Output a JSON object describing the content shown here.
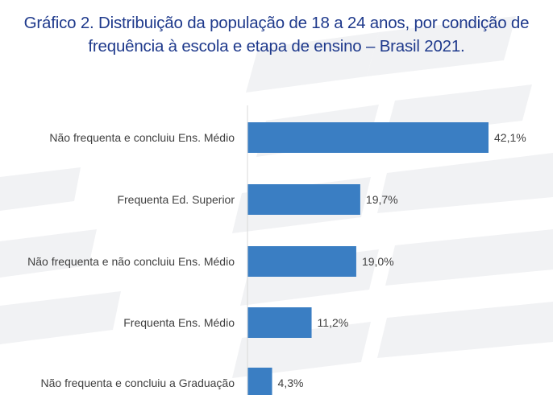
{
  "title_line1": "Gráfico 2. Distribuição da população de 18 a 24 anos, por condição de",
  "title_line2": "frequência à escola e etapa de ensino – Brasil 2021.",
  "colors": {
    "bar": "#3a7ec3",
    "title": "#1f3a8c",
    "label": "#404040"
  },
  "chart_data": {
    "type": "bar",
    "orientation": "horizontal",
    "categories": [
      "Não frequenta e concluiu Ens. Médio",
      "Frequenta Ed. Superior",
      "Não frequenta e não concluiu Ens. Médio",
      "Frequenta Ens. Médio",
      "Não frequenta e concluiu a Graduação"
    ],
    "values": [
      42.1,
      19.7,
      19.0,
      11.2,
      4.3
    ],
    "value_labels": [
      "42,1%",
      "19,7%",
      "19,0%",
      "11,2%",
      "4,3%"
    ],
    "unit": "%",
    "xlim": [
      0,
      42.1
    ],
    "grid": false,
    "legend": "none"
  }
}
